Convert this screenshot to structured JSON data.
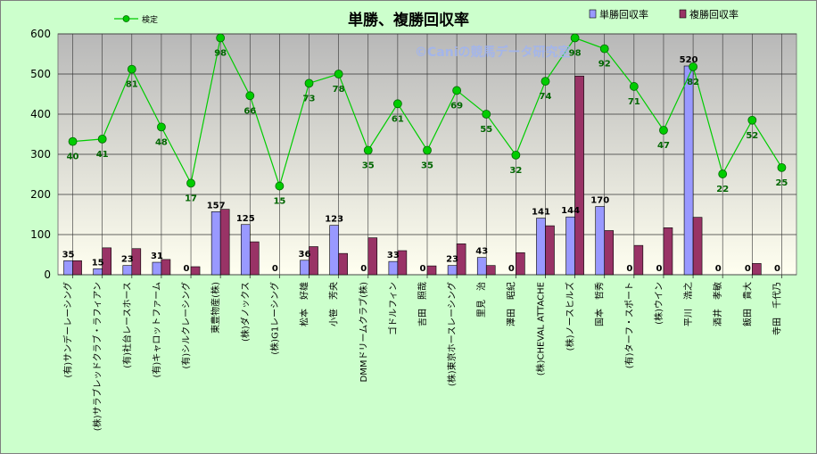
{
  "chart_data": {
    "type": "bar",
    "title": "単勝、複勝回収率",
    "watermark": "©Caniの競馬データ研究室",
    "ylim": [
      0,
      600
    ],
    "yticks": [
      0,
      100,
      200,
      300,
      400,
      500,
      600
    ],
    "grid": true,
    "legend": {
      "line_position": "top-left",
      "bars_position": "top-right"
    },
    "categories": [
      "(有)サンデーレーシング",
      "(株)サラブレッドクラブ・ラフィアン",
      "(有)社台レースホース",
      "(有)キャロットファーム",
      "(有)シルクレーシング",
      "東豊物産(株)",
      "(株)ダノックス",
      "(株)G1レーシング",
      "松本　好雄",
      "小笹　芳央",
      "DMMドリームクラブ(株)",
      "ゴドルフィン",
      "吉田　照哉",
      "(株)東京ホースレーシング",
      "里見　治",
      "澤田　昭紀",
      "(株)CHEVAL ATTACHE",
      "(株)ノースヒルズ",
      "国本　哲秀",
      "(有)ターフ・スポート",
      "(株)ウイン",
      "平川　浩之",
      "酒井　孝敏",
      "飯田　貴大",
      "寺田　千代乃"
    ],
    "series": [
      {
        "name": "単勝回収率",
        "kind": "bar",
        "color": "#9999ff",
        "values": [
          35,
          15,
          23,
          31,
          0,
          157,
          125,
          0,
          36,
          123,
          0,
          33,
          0,
          23,
          43,
          0,
          141,
          144,
          170,
          0,
          0,
          520,
          0,
          0,
          0
        ],
        "labels": [
          "35",
          "15",
          "23",
          "31",
          "0",
          "157",
          "125",
          "0",
          "36",
          "123",
          "0",
          "33",
          "0",
          "23",
          "43",
          "0",
          "141",
          "144",
          "170",
          "0",
          "0",
          "520",
          "0",
          "0",
          "0"
        ]
      },
      {
        "name": "複勝回収率",
        "kind": "bar",
        "color": "#993366",
        "values": [
          35,
          67,
          65,
          38,
          20,
          163,
          82,
          0,
          70,
          53,
          92,
          60,
          22,
          77,
          23,
          55,
          122,
          495,
          110,
          73,
          117,
          143,
          0,
          28,
          0
        ]
      },
      {
        "name": "検定",
        "kind": "line",
        "color": "#00cc00",
        "values": [
          332,
          338,
          512,
          368,
          228,
          590,
          446,
          221,
          477,
          500,
          310,
          426,
          310,
          459,
          400,
          298,
          482,
          590,
          563,
          469,
          360,
          518,
          251,
          385,
          267
        ],
        "labels": [
          "40",
          "41",
          "81",
          "48",
          "17",
          "98",
          "66",
          "15",
          "73",
          "78",
          "35",
          "61",
          "35",
          "69",
          "55",
          "32",
          "74",
          "98",
          "92",
          "71",
          "47",
          "82",
          "22",
          "52",
          "25"
        ]
      }
    ]
  }
}
